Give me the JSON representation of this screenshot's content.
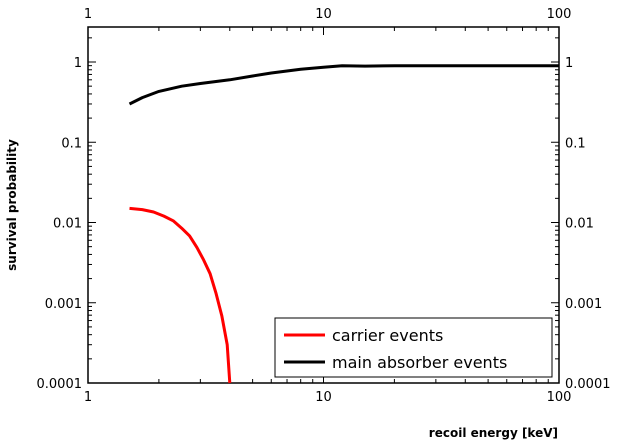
{
  "chart_data": {
    "type": "line",
    "xlabel": "recoil energy [keV]",
    "ylabel": "survival probability",
    "x_scale": "log",
    "y_scale": "log",
    "xlim": [
      1,
      100
    ],
    "ylim": [
      0.0001,
      2
    ],
    "x_ticks": [
      {
        "value": 1,
        "label": "1"
      },
      {
        "value": 10,
        "label": "10"
      },
      {
        "value": 100,
        "label": "100"
      }
    ],
    "y_ticks": [
      {
        "value": 1,
        "label": "1"
      },
      {
        "value": 0.1,
        "label": "0.1"
      },
      {
        "value": 0.01,
        "label": "0.01"
      },
      {
        "value": 0.001,
        "label": "0.001"
      },
      {
        "value": 0.0001,
        "label": "0.0001"
      }
    ],
    "grid": false,
    "legend_position": "bottom-right",
    "series": [
      {
        "name": "carrier events",
        "color": "#ff0000",
        "points": [
          [
            1.5,
            0.015
          ],
          [
            1.7,
            0.0145
          ],
          [
            1.9,
            0.0135
          ],
          [
            2.1,
            0.012
          ],
          [
            2.3,
            0.0105
          ],
          [
            2.5,
            0.0085
          ],
          [
            2.7,
            0.0068
          ],
          [
            2.9,
            0.0049
          ],
          [
            3.1,
            0.0034
          ],
          [
            3.3,
            0.0023
          ],
          [
            3.5,
            0.0013
          ],
          [
            3.7,
            0.00069
          ],
          [
            3.9,
            0.0003
          ],
          [
            4.0,
            0.0001
          ]
        ]
      },
      {
        "name": "main absorber events",
        "color": "#000000",
        "points": [
          [
            1.5,
            0.3
          ],
          [
            1.7,
            0.36
          ],
          [
            2.0,
            0.43
          ],
          [
            2.5,
            0.5
          ],
          [
            3.0,
            0.54
          ],
          [
            4.0,
            0.6
          ],
          [
            5.0,
            0.67
          ],
          [
            6.0,
            0.73
          ],
          [
            8.0,
            0.81
          ],
          [
            10.0,
            0.86
          ],
          [
            12.0,
            0.9
          ],
          [
            15.0,
            0.89
          ],
          [
            20.0,
            0.9
          ],
          [
            30.0,
            0.9
          ],
          [
            50.0,
            0.9
          ],
          [
            100.0,
            0.9
          ]
        ]
      }
    ]
  }
}
